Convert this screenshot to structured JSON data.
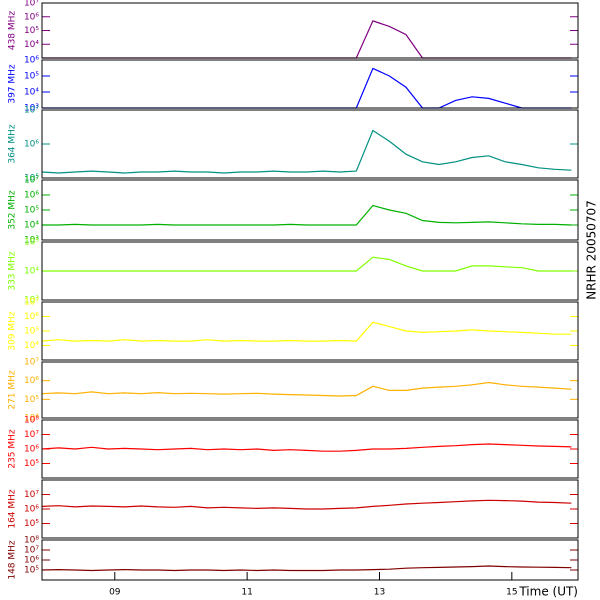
{
  "chart_data": [
    {
      "type": "line",
      "ylabel": "438 MHz",
      "ylog": true,
      "xlim": [
        7.9,
        16.0
      ],
      "ylim": [
        1000,
        10000000
      ],
      "yticks": [
        {
          "value": 10000,
          "label": "10⁴"
        },
        {
          "value": 100000,
          "label": "10⁵"
        },
        {
          "value": 1000000,
          "label": "10⁶"
        },
        {
          "value": 10000000,
          "label": "10⁷"
        }
      ],
      "x": [
        7.9,
        8.15,
        8.4,
        8.65,
        8.9,
        9.15,
        9.4,
        9.65,
        9.9,
        10.15,
        10.4,
        10.65,
        10.9,
        11.15,
        11.4,
        11.65,
        11.9,
        12.15,
        12.4,
        12.65,
        12.9,
        13.15,
        13.4,
        13.65,
        13.9,
        14.15,
        14.4,
        14.65,
        14.9,
        15.15,
        15.4,
        15.65,
        15.9
      ],
      "series": [
        {
          "color": "#800080",
          "values": [
            1000,
            1000,
            1000,
            1000,
            1000,
            1000,
            1000,
            1000,
            1000,
            1000,
            1000,
            1000,
            1000,
            1000,
            1000,
            1000,
            1000,
            1000,
            1000,
            1000,
            500000,
            200000,
            50000,
            1000,
            1000,
            1000,
            1000,
            1000,
            1000,
            1000,
            1000,
            1000,
            1000
          ]
        }
      ]
    },
    {
      "type": "line",
      "ylabel": "397 MHz",
      "ylog": true,
      "xlim": [
        7.9,
        16.0
      ],
      "ylim": [
        1000,
        1000000
      ],
      "yticks": [
        {
          "value": 1000,
          "label": "10³"
        },
        {
          "value": 10000,
          "label": "10⁴"
        },
        {
          "value": 100000,
          "label": "10⁵"
        },
        {
          "value": 1000000,
          "label": "10⁶"
        }
      ],
      "x": [
        7.9,
        8.15,
        8.4,
        8.65,
        8.9,
        9.15,
        9.4,
        9.65,
        9.9,
        10.15,
        10.4,
        10.65,
        10.9,
        11.15,
        11.4,
        11.65,
        11.9,
        12.15,
        12.4,
        12.65,
        12.9,
        13.15,
        13.4,
        13.65,
        13.9,
        14.15,
        14.4,
        14.65,
        14.9,
        15.15,
        15.4,
        15.65,
        15.9
      ],
      "series": [
        {
          "color": "#0000ff",
          "values": [
            1000,
            1000,
            1000,
            1000,
            1000,
            1000,
            1000,
            1000,
            1000,
            1000,
            1000,
            1000,
            1000,
            1000,
            1000,
            1000,
            1000,
            1000,
            1000,
            1000,
            300000,
            100000,
            20000,
            1000,
            1000,
            3000,
            5000,
            4000,
            2000,
            1000,
            1000,
            1000,
            1000
          ]
        }
      ]
    },
    {
      "type": "line",
      "ylabel": "364 MHz",
      "ylog": true,
      "xlim": [
        7.9,
        16.0
      ],
      "ylim": [
        100000,
        10000000
      ],
      "yticks": [
        {
          "value": 100000,
          "label": "10⁵"
        },
        {
          "value": 1000000,
          "label": "10⁶"
        },
        {
          "value": 10000000,
          "label": "10⁷"
        }
      ],
      "x": [
        7.9,
        8.15,
        8.4,
        8.65,
        8.9,
        9.15,
        9.4,
        9.65,
        9.9,
        10.15,
        10.4,
        10.65,
        10.9,
        11.15,
        11.4,
        11.65,
        11.9,
        12.15,
        12.4,
        12.65,
        12.9,
        13.15,
        13.4,
        13.65,
        13.9,
        14.15,
        14.4,
        14.65,
        14.9,
        15.15,
        15.4,
        15.65,
        15.9
      ],
      "series": [
        {
          "color": "#009080",
          "values": [
            150000,
            140000,
            150000,
            160000,
            150000,
            140000,
            150000,
            150000,
            160000,
            150000,
            150000,
            140000,
            150000,
            150000,
            160000,
            150000,
            150000,
            160000,
            150000,
            160000,
            2500000,
            1200000,
            500000,
            300000,
            250000,
            300000,
            400000,
            450000,
            300000,
            250000,
            200000,
            180000,
            170000
          ]
        }
      ]
    },
    {
      "type": "line",
      "ylabel": "352 MHz",
      "ylog": true,
      "xlim": [
        7.9,
        16.0
      ],
      "ylim": [
        1000,
        10000000
      ],
      "yticks": [
        {
          "value": 1000,
          "label": "10³"
        },
        {
          "value": 10000,
          "label": "10⁴"
        },
        {
          "value": 100000,
          "label": "10⁵"
        },
        {
          "value": 1000000,
          "label": "10⁶"
        },
        {
          "value": 10000000,
          "label": "10⁷"
        }
      ],
      "x": [
        7.9,
        8.15,
        8.4,
        8.65,
        8.9,
        9.15,
        9.4,
        9.65,
        9.9,
        10.15,
        10.4,
        10.65,
        10.9,
        11.15,
        11.4,
        11.65,
        11.9,
        12.15,
        12.4,
        12.65,
        12.9,
        13.15,
        13.4,
        13.65,
        13.9,
        14.15,
        14.4,
        14.65,
        14.9,
        15.15,
        15.4,
        15.65,
        15.9
      ],
      "series": [
        {
          "color": "#00b000",
          "values": [
            10000,
            10000,
            11000,
            10000,
            10000,
            10000,
            10000,
            11000,
            10000,
            10000,
            10000,
            10000,
            10000,
            10000,
            10000,
            11000,
            10000,
            10000,
            10000,
            10000,
            200000,
            100000,
            60000,
            20000,
            15000,
            14000,
            15000,
            16000,
            14000,
            12000,
            11000,
            11000,
            10000
          ]
        }
      ]
    },
    {
      "type": "line",
      "ylabel": "333 MHz",
      "ylog": true,
      "xlim": [
        7.9,
        16.0
      ],
      "ylim": [
        1000,
        100000
      ],
      "yticks": [
        {
          "value": 1000,
          "label": "10³"
        },
        {
          "value": 10000,
          "label": "10⁴"
        },
        {
          "value": 100000,
          "label": "10⁵"
        }
      ],
      "x": [
        7.9,
        8.15,
        8.4,
        8.65,
        8.9,
        9.15,
        9.4,
        9.65,
        9.9,
        10.15,
        10.4,
        10.65,
        10.9,
        11.15,
        11.4,
        11.65,
        11.9,
        12.15,
        12.4,
        12.65,
        12.9,
        13.15,
        13.4,
        13.65,
        13.9,
        14.15,
        14.4,
        14.65,
        14.9,
        15.15,
        15.4,
        15.65,
        15.9
      ],
      "series": [
        {
          "color": "#80ff00",
          "values": [
            10000,
            10000,
            10000,
            10000,
            10000,
            10000,
            10000,
            10000,
            10000,
            10000,
            10000,
            10000,
            10000,
            10000,
            10000,
            10000,
            10000,
            10000,
            10000,
            10000,
            30000,
            25000,
            15000,
            10000,
            10000,
            10000,
            15000,
            15000,
            14000,
            13000,
            10000,
            10000,
            10000
          ]
        }
      ]
    },
    {
      "type": "line",
      "ylabel": "309 MHz",
      "ylog": true,
      "xlim": [
        7.9,
        16.0
      ],
      "ylim": [
        1000,
        10000000
      ],
      "yticks": [
        {
          "value": 10000,
          "label": "10⁴"
        },
        {
          "value": 100000,
          "label": "10⁵"
        },
        {
          "value": 1000000,
          "label": "10⁶"
        },
        {
          "value": 10000000,
          "label": "10⁷"
        }
      ],
      "x": [
        7.9,
        8.15,
        8.4,
        8.65,
        8.9,
        9.15,
        9.4,
        9.65,
        9.9,
        10.15,
        10.4,
        10.65,
        10.9,
        11.15,
        11.4,
        11.65,
        11.9,
        12.15,
        12.4,
        12.65,
        12.9,
        13.15,
        13.4,
        13.65,
        13.9,
        14.15,
        14.4,
        14.65,
        14.9,
        15.15,
        15.4,
        15.65,
        15.9
      ],
      "series": [
        {
          "color": "#ffff00",
          "values": [
            20000,
            25000,
            20000,
            22000,
            20000,
            25000,
            20000,
            22000,
            20000,
            20000,
            25000,
            20000,
            22000,
            20000,
            20000,
            22000,
            20000,
            20000,
            22000,
            20000,
            400000,
            200000,
            100000,
            80000,
            90000,
            100000,
            120000,
            100000,
            90000,
            80000,
            70000,
            60000,
            60000
          ]
        }
      ]
    },
    {
      "type": "line",
      "ylabel": "271 MHz",
      "ylog": true,
      "xlim": [
        7.9,
        16.0
      ],
      "ylim": [
        10000,
        10000000
      ],
      "yticks": [
        {
          "value": 10000,
          "label": "10⁴"
        },
        {
          "value": 100000,
          "label": "10⁵"
        },
        {
          "value": 1000000,
          "label": "10⁶"
        },
        {
          "value": 10000000,
          "label": "10⁷"
        }
      ],
      "x": [
        7.9,
        8.15,
        8.4,
        8.65,
        8.9,
        9.15,
        9.4,
        9.65,
        9.9,
        10.15,
        10.4,
        10.65,
        10.9,
        11.15,
        11.4,
        11.65,
        11.9,
        12.15,
        12.4,
        12.65,
        12.9,
        13.15,
        13.4,
        13.65,
        13.9,
        14.15,
        14.4,
        14.65,
        14.9,
        15.15,
        15.4,
        15.65,
        15.9
      ],
      "series": [
        {
          "color": "#ffb000",
          "values": [
            200000,
            220000,
            200000,
            250000,
            200000,
            220000,
            200000,
            230000,
            200000,
            210000,
            200000,
            190000,
            200000,
            210000,
            190000,
            180000,
            170000,
            160000,
            150000,
            160000,
            500000,
            300000,
            300000,
            400000,
            450000,
            500000,
            600000,
            800000,
            600000,
            500000,
            450000,
            400000,
            350000
          ]
        }
      ]
    },
    {
      "type": "line",
      "ylabel": "235 MHz",
      "ylog": true,
      "xlim": [
        7.9,
        16.0
      ],
      "ylim": [
        10000,
        100000000
      ],
      "yticks": [
        {
          "value": 100000,
          "label": "10⁵"
        },
        {
          "value": 1000000,
          "label": "10⁶"
        },
        {
          "value": 10000000,
          "label": "10⁷"
        },
        {
          "value": 100000000,
          "label": "10⁸"
        }
      ],
      "x": [
        7.9,
        8.15,
        8.4,
        8.65,
        8.9,
        9.15,
        9.4,
        9.65,
        9.9,
        10.15,
        10.4,
        10.65,
        10.9,
        11.15,
        11.4,
        11.65,
        11.9,
        12.15,
        12.4,
        12.65,
        12.9,
        13.15,
        13.4,
        13.65,
        13.9,
        14.15,
        14.4,
        14.65,
        14.9,
        15.15,
        15.4,
        15.65,
        15.9
      ],
      "series": [
        {
          "color": "#ff0000",
          "values": [
            1000000,
            1200000,
            1000000,
            1300000,
            1000000,
            1100000,
            1000000,
            900000,
            1000000,
            1100000,
            900000,
            1000000,
            900000,
            1000000,
            800000,
            900000,
            800000,
            700000,
            700000,
            800000,
            1000000,
            1000000,
            1100000,
            1300000,
            1500000,
            1700000,
            2000000,
            2200000,
            2000000,
            1800000,
            1600000,
            1500000,
            1400000
          ]
        }
      ]
    },
    {
      "type": "line",
      "ylabel": "164 MHz",
      "ylog": true,
      "xlim": [
        7.9,
        16.0
      ],
      "ylim": [
        10000,
        100000000
      ],
      "yticks": [
        {
          "value": 100000,
          "label": "10⁵"
        },
        {
          "value": 1000000,
          "label": "10⁶"
        },
        {
          "value": 10000000,
          "label": "10⁷"
        }
      ],
      "x": [
        7.9,
        8.15,
        8.4,
        8.65,
        8.9,
        9.15,
        9.4,
        9.65,
        9.9,
        10.15,
        10.4,
        10.65,
        10.9,
        11.15,
        11.4,
        11.65,
        11.9,
        12.15,
        12.4,
        12.65,
        12.9,
        13.15,
        13.4,
        13.65,
        13.9,
        14.15,
        14.4,
        14.65,
        14.9,
        15.15,
        15.4,
        15.65,
        15.9
      ],
      "series": [
        {
          "color": "#cc0000",
          "values": [
            1500000,
            1700000,
            1400000,
            1600000,
            1500000,
            1400000,
            1600000,
            1400000,
            1300000,
            1500000,
            1200000,
            1300000,
            1200000,
            1100000,
            1200000,
            1100000,
            1000000,
            1000000,
            1100000,
            1200000,
            1500000,
            1800000,
            2200000,
            2500000,
            2800000,
            3200000,
            3600000,
            4000000,
            3800000,
            3500000,
            3000000,
            2800000,
            2500000
          ]
        }
      ]
    },
    {
      "type": "line",
      "ylabel": "148 MHz",
      "ylog": true,
      "xlim": [
        7.9,
        16.0
      ],
      "ylim": [
        10000,
        100000000
      ],
      "yticks": [
        {
          "value": 100000,
          "label": "10⁵"
        },
        {
          "value": 1000000,
          "label": "10⁶"
        },
        {
          "value": 10000000,
          "label": "10⁷"
        },
        {
          "value": 100000000,
          "label": "10⁸"
        }
      ],
      "x": [
        7.9,
        8.15,
        8.4,
        8.65,
        8.9,
        9.15,
        9.4,
        9.65,
        9.9,
        10.15,
        10.4,
        10.65,
        10.9,
        11.15,
        11.4,
        11.65,
        11.9,
        12.15,
        12.4,
        12.65,
        12.9,
        13.15,
        13.4,
        13.65,
        13.9,
        14.15,
        14.4,
        14.65,
        14.9,
        15.15,
        15.4,
        15.65,
        15.9
      ],
      "series": [
        {
          "color": "#800000",
          "values": [
            100000,
            110000,
            100000,
            90000,
            100000,
            110000,
            100000,
            100000,
            90000,
            100000,
            100000,
            90000,
            100000,
            90000,
            100000,
            90000,
            90000,
            90000,
            100000,
            100000,
            110000,
            120000,
            150000,
            170000,
            180000,
            200000,
            220000,
            250000,
            220000,
            200000,
            190000,
            180000,
            170000
          ]
        }
      ],
      "xlabel": "Time (UT)",
      "xticks": [
        {
          "value": 9,
          "label": "09"
        },
        11,
        13,
        15
      ]
    }
  ],
  "side_label": "NRHR 20050707"
}
